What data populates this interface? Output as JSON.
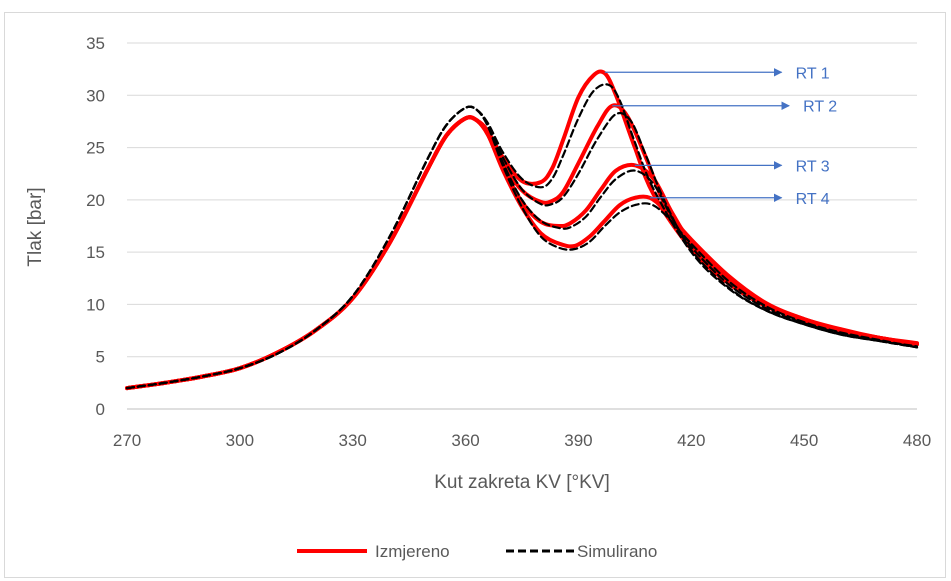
{
  "chart_data": {
    "type": "line",
    "xlabel": "Kut zakreta KV [°KV]",
    "ylabel": "Tlak [bar]",
    "xlim": [
      270,
      480
    ],
    "ylim": [
      0,
      35
    ],
    "x_ticks": [
      "270",
      "300",
      "330",
      "360",
      "390",
      "420",
      "450",
      "480"
    ],
    "y_ticks": [
      "0",
      "5",
      "10",
      "15",
      "20",
      "25",
      "30",
      "35"
    ],
    "grid": "horizontal",
    "legend_position": "bottom",
    "colors": {
      "measured": "#ff0000",
      "simulated": "#000000",
      "annotation": "#4472c4",
      "grid": "#d9d9d9",
      "text": "#595959"
    },
    "legend": [
      {
        "label": "Izmjereno",
        "style": "solid-red"
      },
      {
        "label": "Simulirano",
        "style": "dashed-black"
      }
    ],
    "annotations": [
      {
        "text": "RT 1",
        "from": [
          397,
          32.2
        ],
        "to": [
          444,
          32.2
        ]
      },
      {
        "text": "RT 2",
        "from": [
          399,
          29.0
        ],
        "to": [
          446,
          29.0
        ]
      },
      {
        "text": "RT 3",
        "from": [
          405,
          23.3
        ],
        "to": [
          444,
          23.3
        ]
      },
      {
        "text": "RT 4",
        "from": [
          409,
          20.2
        ],
        "to": [
          444,
          20.2
        ]
      }
    ],
    "series": [
      {
        "legend": "Izmjereno",
        "run": "RT 1",
        "x": [
          270,
          280,
          290,
          300,
          310,
          320,
          330,
          340,
          350,
          355,
          360,
          363,
          366,
          370,
          375,
          380,
          383,
          386,
          390,
          394,
          397,
          400,
          405,
          410,
          420,
          430,
          440,
          450,
          460,
          470,
          480
        ],
        "y": [
          2.0,
          2.5,
          3.1,
          3.9,
          5.4,
          7.5,
          10.6,
          16.0,
          23.0,
          26.2,
          27.8,
          27.6,
          26.5,
          24.0,
          21.8,
          21.7,
          23.0,
          25.8,
          29.8,
          31.9,
          32.1,
          30.0,
          25.0,
          20.5,
          15.3,
          12.0,
          9.8,
          8.5,
          7.5,
          6.8,
          6.3
        ]
      },
      {
        "legend": "Izmjereno",
        "run": "RT 2",
        "x": [
          270,
          280,
          290,
          300,
          310,
          320,
          330,
          340,
          350,
          355,
          360,
          363,
          366,
          370,
          375,
          380,
          383,
          386,
          390,
          395,
          399,
          403,
          408,
          413,
          420,
          430,
          440,
          450,
          460,
          470,
          480
        ],
        "y": [
          2.0,
          2.5,
          3.1,
          3.9,
          5.4,
          7.5,
          10.6,
          16.0,
          23.0,
          26.2,
          27.8,
          27.6,
          26.5,
          23.5,
          20.9,
          19.8,
          19.9,
          20.8,
          23.5,
          27.0,
          29.0,
          28.0,
          24.0,
          19.5,
          15.6,
          12.2,
          9.9,
          8.5,
          7.5,
          6.8,
          6.2
        ]
      },
      {
        "legend": "Izmjereno",
        "run": "RT 3",
        "x": [
          270,
          280,
          290,
          300,
          310,
          320,
          330,
          340,
          350,
          355,
          360,
          363,
          366,
          370,
          375,
          380,
          385,
          388,
          392,
          396,
          400,
          405,
          410,
          415,
          420,
          430,
          440,
          450,
          460,
          470,
          480
        ],
        "y": [
          2.0,
          2.5,
          3.1,
          3.9,
          5.4,
          7.5,
          10.6,
          16.0,
          23.0,
          26.2,
          27.8,
          27.6,
          26.2,
          23.0,
          19.8,
          17.9,
          17.5,
          17.8,
          19.0,
          21.0,
          22.8,
          23.3,
          22.0,
          18.7,
          16.0,
          12.5,
          10.0,
          8.6,
          7.5,
          6.8,
          6.2
        ]
      },
      {
        "legend": "Izmjereno",
        "run": "RT 4",
        "x": [
          270,
          280,
          290,
          300,
          310,
          320,
          330,
          340,
          350,
          355,
          360,
          363,
          366,
          370,
          375,
          380,
          385,
          389,
          393,
          397,
          401,
          405,
          409,
          413,
          420,
          430,
          440,
          450,
          460,
          470,
          480
        ],
        "y": [
          2.0,
          2.5,
          3.1,
          3.9,
          5.4,
          7.5,
          10.6,
          16.0,
          23.0,
          26.2,
          27.8,
          27.6,
          26.2,
          22.8,
          19.3,
          16.8,
          15.8,
          15.6,
          16.5,
          18.0,
          19.5,
          20.2,
          20.2,
          19.0,
          16.2,
          12.7,
          10.1,
          8.6,
          7.6,
          6.8,
          6.2
        ]
      },
      {
        "legend": "Simulirano",
        "run": "RT 1",
        "x": [
          270,
          280,
          290,
          300,
          310,
          320,
          330,
          340,
          350,
          355,
          360,
          363,
          366,
          370,
          375,
          380,
          383,
          386,
          390,
          394,
          398,
          401,
          405,
          410,
          420,
          430,
          440,
          450,
          460,
          470,
          480
        ],
        "y": [
          2.0,
          2.5,
          3.1,
          3.9,
          5.3,
          7.5,
          10.8,
          16.6,
          24.0,
          27.2,
          28.8,
          28.6,
          27.3,
          24.5,
          22.0,
          21.2,
          22.0,
          24.3,
          27.8,
          30.4,
          31.0,
          29.5,
          25.5,
          21.0,
          15.0,
          11.5,
          9.4,
          8.1,
          7.1,
          6.5,
          6.0
        ]
      },
      {
        "legend": "Simulirano",
        "run": "RT 2",
        "x": [
          270,
          280,
          290,
          300,
          310,
          320,
          330,
          340,
          350,
          355,
          360,
          363,
          366,
          370,
          375,
          380,
          383,
          386,
          390,
          395,
          400,
          404,
          408,
          413,
          420,
          430,
          440,
          450,
          460,
          470,
          480
        ],
        "y": [
          2.0,
          2.5,
          3.1,
          3.9,
          5.3,
          7.5,
          10.8,
          16.6,
          24.0,
          27.2,
          28.8,
          28.6,
          27.2,
          24.0,
          21.0,
          19.6,
          19.6,
          20.3,
          22.5,
          25.8,
          28.2,
          27.5,
          24.2,
          19.8,
          15.2,
          11.6,
          9.4,
          8.1,
          7.1,
          6.5,
          5.9
        ]
      },
      {
        "legend": "Simulirano",
        "run": "RT 3",
        "x": [
          270,
          280,
          290,
          300,
          310,
          320,
          330,
          340,
          350,
          355,
          360,
          363,
          366,
          370,
          375,
          380,
          385,
          388,
          392,
          396,
          400,
          405,
          410,
          415,
          420,
          430,
          440,
          450,
          460,
          470,
          480
        ],
        "y": [
          2.0,
          2.5,
          3.1,
          3.9,
          5.3,
          7.5,
          10.8,
          16.6,
          24.0,
          27.2,
          28.8,
          28.6,
          27.0,
          23.5,
          20.0,
          18.0,
          17.3,
          17.4,
          18.4,
          20.3,
          22.0,
          22.8,
          21.5,
          18.2,
          15.5,
          11.9,
          9.6,
          8.2,
          7.2,
          6.5,
          5.9
        ]
      },
      {
        "legend": "Simulirano",
        "run": "RT 4",
        "x": [
          270,
          280,
          290,
          300,
          310,
          320,
          330,
          340,
          350,
          355,
          360,
          363,
          366,
          370,
          375,
          380,
          385,
          389,
          393,
          397,
          401,
          405,
          409,
          413,
          420,
          430,
          440,
          450,
          460,
          470,
          480
        ],
        "y": [
          2.0,
          2.5,
          3.1,
          3.9,
          5.3,
          7.5,
          10.8,
          16.6,
          24.0,
          27.2,
          28.8,
          28.6,
          27.0,
          23.2,
          19.3,
          16.5,
          15.4,
          15.3,
          16.0,
          17.5,
          18.8,
          19.5,
          19.6,
          18.6,
          15.8,
          12.2,
          9.8,
          8.3,
          7.3,
          6.6,
          5.9
        ]
      }
    ]
  }
}
